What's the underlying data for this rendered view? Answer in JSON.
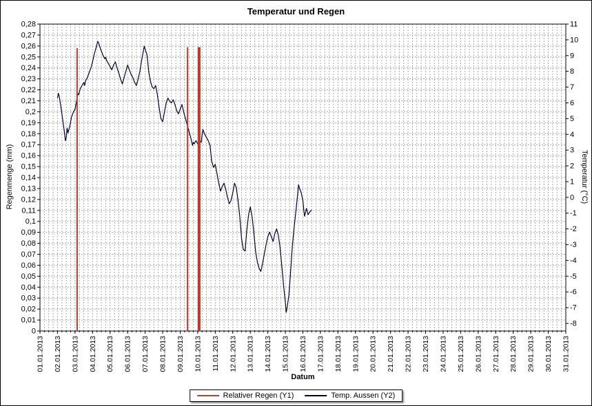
{
  "chart_data": {
    "type": "line",
    "title": "Temperatur und Regen",
    "xlabel": "Datum",
    "y1_label": "Regenmenge (mm)",
    "y2_label": "Temperatur (°C)",
    "y1_range": [
      0,
      0.28
    ],
    "y2_range": [
      -8,
      11
    ],
    "x_range_days": [
      1,
      31
    ],
    "grid": "dashed",
    "grid_color": "#9a9a9a",
    "x_minor_grid_step": 0.25,
    "y1_grid_step": 0.01,
    "legend_position": "bottom-center",
    "x_ticks": [
      "01.01.2013",
      "02.01.2013",
      "03.01.2013",
      "04.01.2013",
      "05.01.2013",
      "06.01.2013",
      "07.01.2013",
      "08.01.2013",
      "09.01.2013",
      "10.01.2013",
      "11.01.2013",
      "12.01.2013",
      "13.01.2013",
      "14.01.2013",
      "15.01.2013",
      "16.01.2013",
      "17.01.2013",
      "18.01.2013",
      "19.01.2013",
      "20.01.2013",
      "21.01.2013",
      "22.01.2013",
      "23.01.2013",
      "24.01.2013",
      "25.01.2013",
      "26.01.2013",
      "27.01.2013",
      "28.01.2013",
      "29.01.2013",
      "30.01.2013",
      "31.01.2013"
    ],
    "y1_ticks": [
      "0",
      "0,01",
      "0,02",
      "0,03",
      "0,04",
      "0,05",
      "0,06",
      "0,07",
      "0,08",
      "0,09",
      "0,1",
      "0,11",
      "0,12",
      "0,13",
      "0,14",
      "0,15",
      "0,16",
      "0,17",
      "0,18",
      "0,19",
      "0,2",
      "0,21",
      "0,22",
      "0,23",
      "0,24",
      "0,25",
      "0,26",
      "0,27",
      "0,28"
    ],
    "y2_ticks": [
      "-8",
      "-7",
      "-6",
      "-5",
      "-4",
      "-3",
      "-2",
      "-1",
      "0",
      "1",
      "2",
      "3",
      "4",
      "5",
      "6",
      "7",
      "8",
      "9",
      "10",
      "11"
    ],
    "series": [
      {
        "name": "Relativer Regen (Y1)",
        "axis": "y1",
        "render": "vertical-lines",
        "color": "#c0392b",
        "events": [
          {
            "day": 3.12,
            "value": 0.258,
            "width": 2
          },
          {
            "day": 9.42,
            "value": 0.259,
            "width": 2
          },
          {
            "day": 10.08,
            "value": 0.259,
            "width": 4
          }
        ]
      },
      {
        "name": "Temp. Aussen (Y2)",
        "axis": "y2",
        "render": "line",
        "color": "#000033",
        "points": [
          [
            2.0,
            6.3
          ],
          [
            2.05,
            6.6
          ],
          [
            2.1,
            6.4
          ],
          [
            2.2,
            5.7
          ],
          [
            2.3,
            4.9
          ],
          [
            2.4,
            4.1
          ],
          [
            2.45,
            3.6
          ],
          [
            2.5,
            3.8
          ],
          [
            2.55,
            4.4
          ],
          [
            2.6,
            4.1
          ],
          [
            2.7,
            4.5
          ],
          [
            2.8,
            5.1
          ],
          [
            2.9,
            5.4
          ],
          [
            3.0,
            5.6
          ],
          [
            3.1,
            6.2
          ],
          [
            3.15,
            6.6
          ],
          [
            3.2,
            6.5
          ],
          [
            3.3,
            6.9
          ],
          [
            3.4,
            7.1
          ],
          [
            3.5,
            7.3
          ],
          [
            3.55,
            7.1
          ],
          [
            3.6,
            7.4
          ],
          [
            3.7,
            7.6
          ],
          [
            3.8,
            7.9
          ],
          [
            3.9,
            8.2
          ],
          [
            4.0,
            8.6
          ],
          [
            4.1,
            9.1
          ],
          [
            4.2,
            9.5
          ],
          [
            4.3,
            9.9
          ],
          [
            4.35,
            9.8
          ],
          [
            4.4,
            9.6
          ],
          [
            4.5,
            9.3
          ],
          [
            4.6,
            9.0
          ],
          [
            4.7,
            8.8
          ],
          [
            4.75,
            8.9
          ],
          [
            4.8,
            8.7
          ],
          [
            4.9,
            8.5
          ],
          [
            5.0,
            8.3
          ],
          [
            5.1,
            8.1
          ],
          [
            5.2,
            8.4
          ],
          [
            5.3,
            8.6
          ],
          [
            5.4,
            8.2
          ],
          [
            5.5,
            7.9
          ],
          [
            5.6,
            7.5
          ],
          [
            5.7,
            7.2
          ],
          [
            5.8,
            7.6
          ],
          [
            5.9,
            8.0
          ],
          [
            6.0,
            8.4
          ],
          [
            6.1,
            8.1
          ],
          [
            6.2,
            7.8
          ],
          [
            6.3,
            7.6
          ],
          [
            6.4,
            7.3
          ],
          [
            6.5,
            7.1
          ],
          [
            6.6,
            7.5
          ],
          [
            6.7,
            8.0
          ],
          [
            6.8,
            8.7
          ],
          [
            6.9,
            9.3
          ],
          [
            6.95,
            9.6
          ],
          [
            7.0,
            9.4
          ],
          [
            7.1,
            9.1
          ],
          [
            7.15,
            8.6
          ],
          [
            7.2,
            8.0
          ],
          [
            7.3,
            7.4
          ],
          [
            7.4,
            7.0
          ],
          [
            7.5,
            6.9
          ],
          [
            7.6,
            7.1
          ],
          [
            7.7,
            6.5
          ],
          [
            7.8,
            5.7
          ],
          [
            7.9,
            5.0
          ],
          [
            8.0,
            4.8
          ],
          [
            8.1,
            5.4
          ],
          [
            8.2,
            6.0
          ],
          [
            8.3,
            6.3
          ],
          [
            8.4,
            6.1
          ],
          [
            8.5,
            6.0
          ],
          [
            8.6,
            6.2
          ],
          [
            8.7,
            5.9
          ],
          [
            8.8,
            5.5
          ],
          [
            8.9,
            5.3
          ],
          [
            9.0,
            5.6
          ],
          [
            9.1,
            5.9
          ],
          [
            9.2,
            5.4
          ],
          [
            9.3,
            5.0
          ],
          [
            9.4,
            4.6
          ],
          [
            9.5,
            4.2
          ],
          [
            9.6,
            3.8
          ],
          [
            9.7,
            3.3
          ],
          [
            9.75,
            3.5
          ],
          [
            9.8,
            3.4
          ],
          [
            9.9,
            3.6
          ],
          [
            10.0,
            3.4
          ],
          [
            10.1,
            3.6
          ],
          [
            10.2,
            3.5
          ],
          [
            10.25,
            4.0
          ],
          [
            10.3,
            4.3
          ],
          [
            10.4,
            4.0
          ],
          [
            10.5,
            3.8
          ],
          [
            10.6,
            3.6
          ],
          [
            10.7,
            3.3
          ],
          [
            10.8,
            2.3
          ],
          [
            10.9,
            1.9
          ],
          [
            11.0,
            2.1
          ],
          [
            11.1,
            1.5
          ],
          [
            11.2,
            0.9
          ],
          [
            11.3,
            0.4
          ],
          [
            11.4,
            0.7
          ],
          [
            11.5,
            0.9
          ],
          [
            11.6,
            0.5
          ],
          [
            11.7,
            0.0
          ],
          [
            11.8,
            -0.4
          ],
          [
            11.9,
            -0.2
          ],
          [
            12.0,
            0.3
          ],
          [
            12.1,
            0.9
          ],
          [
            12.2,
            0.6
          ],
          [
            12.3,
            -0.2
          ],
          [
            12.4,
            -1.2
          ],
          [
            12.5,
            -2.6
          ],
          [
            12.6,
            -3.3
          ],
          [
            12.7,
            -3.4
          ],
          [
            12.8,
            -2.1
          ],
          [
            12.9,
            -1.1
          ],
          [
            13.0,
            -0.6
          ],
          [
            13.1,
            -1.2
          ],
          [
            13.2,
            -2.2
          ],
          [
            13.3,
            -3.4
          ],
          [
            13.4,
            -4.1
          ],
          [
            13.5,
            -4.5
          ],
          [
            13.6,
            -4.7
          ],
          [
            13.7,
            -4.2
          ],
          [
            13.8,
            -3.6
          ],
          [
            13.9,
            -3.0
          ],
          [
            14.0,
            -2.5
          ],
          [
            14.1,
            -2.2
          ],
          [
            14.2,
            -2.5
          ],
          [
            14.3,
            -2.8
          ],
          [
            14.4,
            -2.3
          ],
          [
            14.5,
            -2.0
          ],
          [
            14.6,
            -2.4
          ],
          [
            14.7,
            -3.2
          ],
          [
            14.8,
            -4.4
          ],
          [
            14.9,
            -5.6
          ],
          [
            15.0,
            -6.7
          ],
          [
            15.05,
            -7.3
          ],
          [
            15.1,
            -7.0
          ],
          [
            15.2,
            -6.2
          ],
          [
            15.3,
            -4.7
          ],
          [
            15.4,
            -3.1
          ],
          [
            15.5,
            -1.9
          ],
          [
            15.6,
            -0.9
          ],
          [
            15.7,
            0.2
          ],
          [
            15.75,
            0.8
          ],
          [
            15.8,
            0.6
          ],
          [
            15.9,
            0.3
          ],
          [
            16.0,
            -0.2
          ],
          [
            16.05,
            -0.8
          ],
          [
            16.1,
            -1.2
          ],
          [
            16.2,
            -0.7
          ],
          [
            16.3,
            -1.1
          ],
          [
            16.4,
            -0.9
          ],
          [
            16.5,
            -0.8
          ]
        ]
      }
    ]
  }
}
